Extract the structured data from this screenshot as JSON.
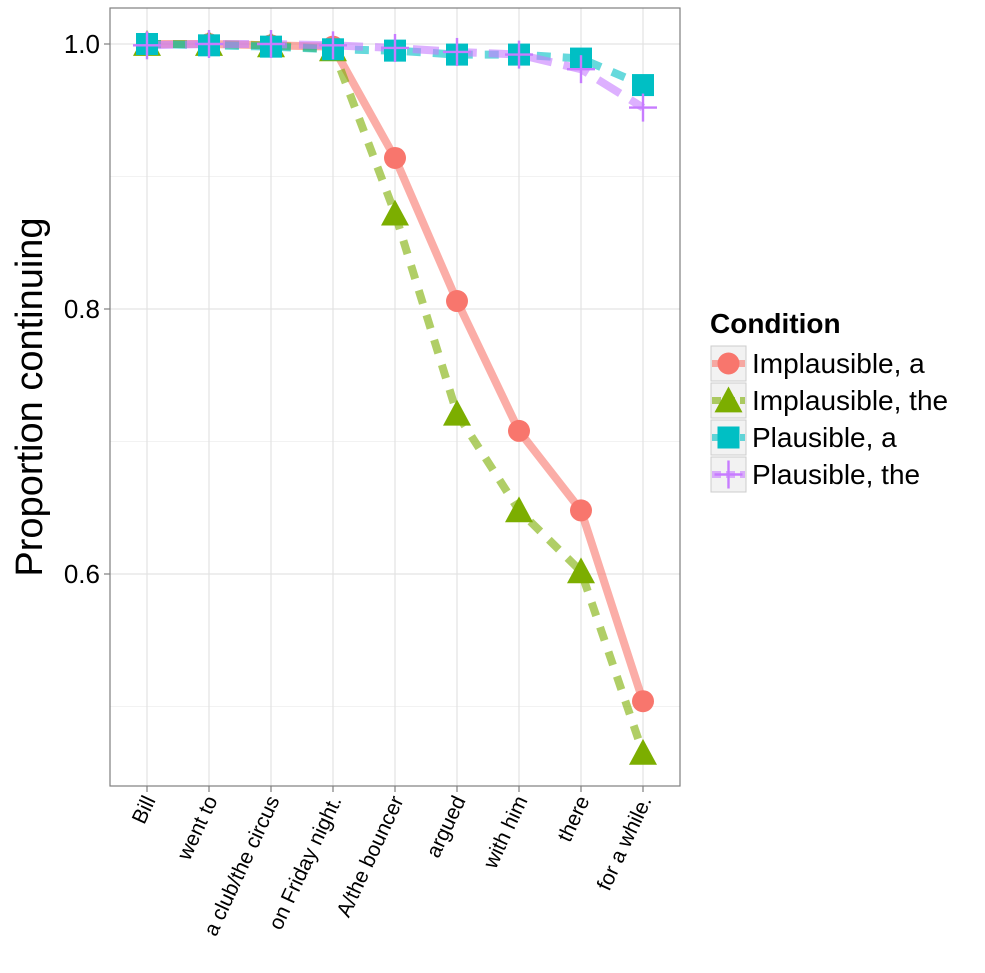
{
  "chart_data": {
    "type": "line",
    "title": "",
    "xlabel": "",
    "ylabel": "Proportion continuing",
    "categories": [
      "Bill",
      "went to",
      "a club/the circus",
      "on Friday night.",
      "A/the bouncer",
      "argued",
      "with him",
      "there",
      "for a while."
    ],
    "ylim": [
      0.44,
      1.025
    ],
    "yticks": [
      0.6,
      0.8,
      1.0
    ],
    "ytick_labels": [
      "0.6",
      "0.8",
      "1.0"
    ],
    "grid": true,
    "legend": {
      "title": "Condition",
      "position": "right"
    },
    "series": [
      {
        "name": "Implausible, a",
        "color": "#F8766D",
        "marker": "circle",
        "line": "solid",
        "values": [
          1.0,
          1.0,
          0.999,
          0.998,
          0.914,
          0.806,
          0.708,
          0.648,
          0.504
        ]
      },
      {
        "name": "Implausible, the",
        "color": "#7CAE00",
        "marker": "triangle",
        "line": "dashed",
        "values": [
          1.0,
          1.0,
          0.999,
          0.996,
          0.872,
          0.721,
          0.648,
          0.602,
          0.465
        ]
      },
      {
        "name": "Plausible, a",
        "color": "#00BFC4",
        "marker": "square",
        "line": "dashed",
        "values": [
          1.0,
          0.999,
          0.998,
          0.996,
          0.995,
          0.992,
          0.992,
          0.989,
          0.969
        ]
      },
      {
        "name": "Plausible, the",
        "color": "#C77CFF",
        "marker": "plus",
        "line": "longdash",
        "values": [
          0.999,
          1.0,
          1.0,
          0.999,
          0.997,
          0.994,
          0.992,
          0.981,
          0.952
        ]
      }
    ]
  }
}
